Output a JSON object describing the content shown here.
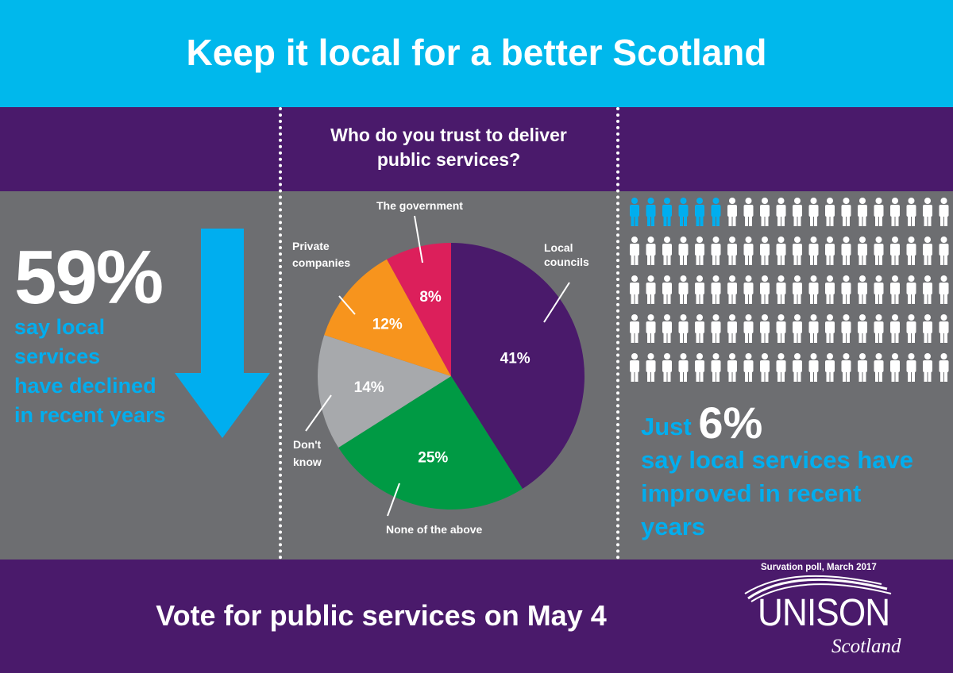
{
  "header": {
    "title": "Keep it local for a better Scotland"
  },
  "left_panel": {
    "stat": "59%",
    "caption_lines": [
      "say local",
      "services",
      "have declined",
      "in recent years"
    ]
  },
  "chart_data": {
    "type": "pie",
    "title": "Who do you trust to deliver public services?",
    "title_lines": [
      "Who do you trust to deliver",
      "public services?"
    ],
    "slices": [
      {
        "label": "Local councils",
        "label_lines": [
          "Local",
          "councils"
        ],
        "value": 41,
        "value_label": "41%",
        "color": "#4a1a6b"
      },
      {
        "label": "None of the above",
        "label_lines": [
          "None of the above"
        ],
        "value": 25,
        "value_label": "25%",
        "color": "#009a44"
      },
      {
        "label": "Don't know",
        "label_lines": [
          "Don't",
          "know"
        ],
        "value": 14,
        "value_label": "14%",
        "color": "#a7a9ac"
      },
      {
        "label": "Private companies",
        "label_lines": [
          "Private",
          "companies"
        ],
        "value": 12,
        "value_label": "12%",
        "color": "#f7941d"
      },
      {
        "label": "The government",
        "label_lines": [
          "The government"
        ],
        "value": 8,
        "value_label": "8%",
        "color": "#dc1f5b"
      }
    ]
  },
  "right_panel": {
    "prefix": "Just",
    "stat": "6%",
    "caption_lines": [
      "say local services have",
      "improved in recent",
      "years"
    ],
    "highlight_percent": 6,
    "highlight_color": "#00aeef"
  },
  "footer": {
    "call_to_action": "Vote for public services on May 4",
    "source": "Survation poll, March 2017",
    "logo_name": "UNISON",
    "logo_sub": "Scotland"
  },
  "colors": {
    "top_band": "#00b8ec",
    "purple": "#4a1a6b",
    "grey": "#6d6e71",
    "blue_text": "#00aeef"
  }
}
